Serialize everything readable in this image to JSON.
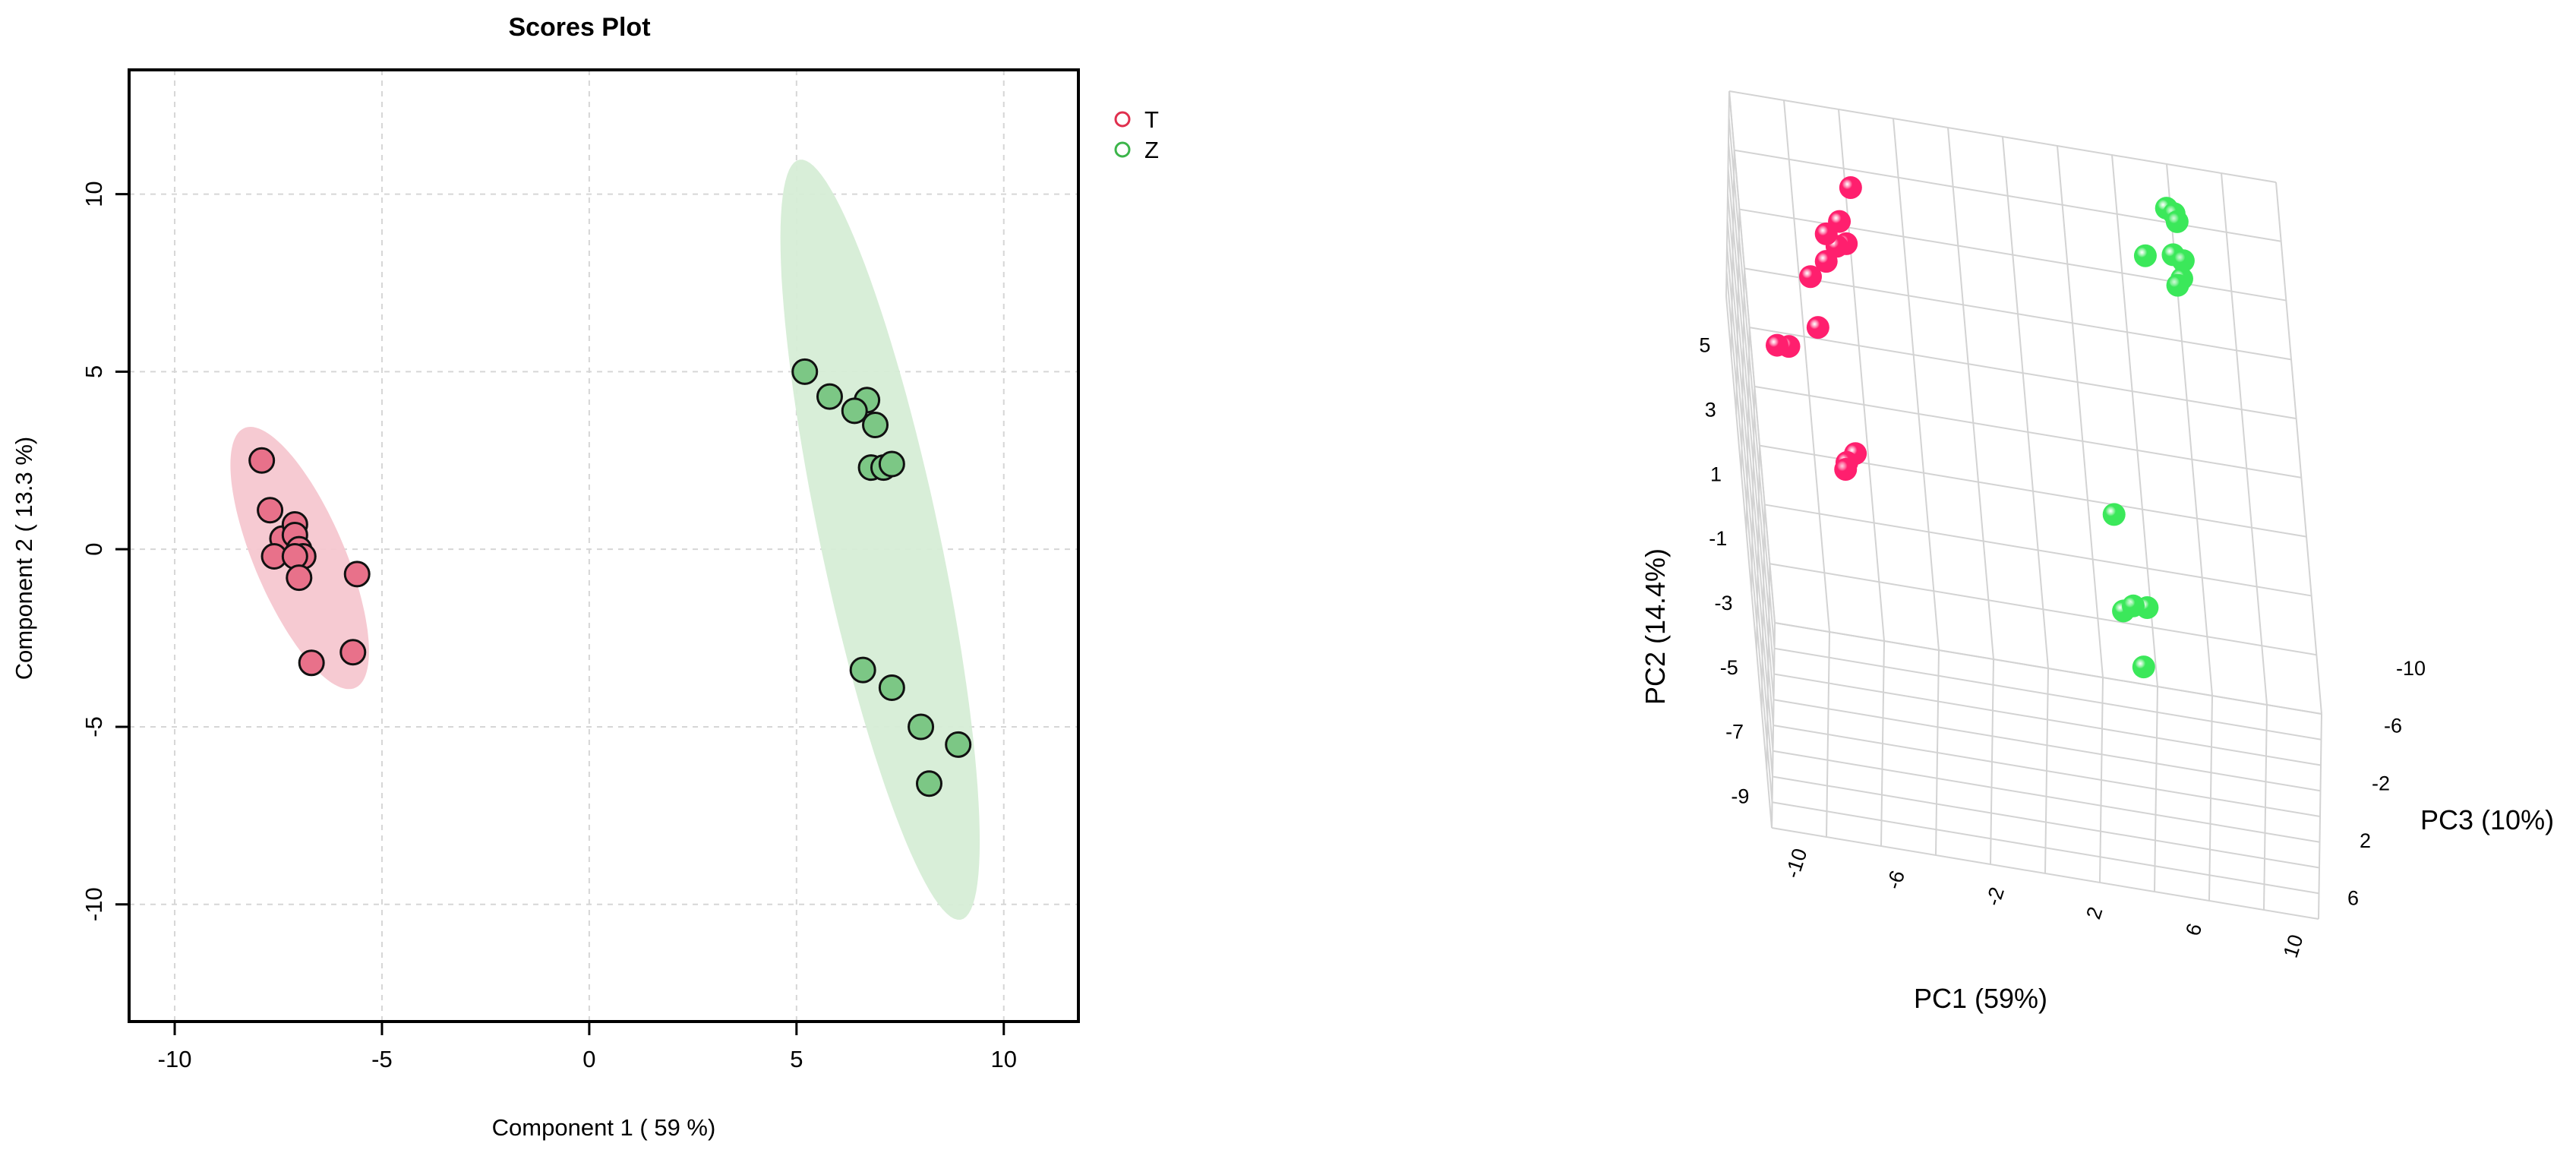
{
  "colors": {
    "T": "#e8718a",
    "Z": "#7cc785",
    "T_ellipse": "#f6c7d0",
    "Z_ellipse": "#d6edd6",
    "T_3d": "#ff1f6e",
    "Z_3d": "#3be85a"
  },
  "chart_data": [
    {
      "type": "scatter",
      "title": "Scores Plot",
      "xlabel": "Component 1 ( 59 %)",
      "ylabel": "Component 2 ( 13.3 %)",
      "xlim": [
        -11.1,
        11.8
      ],
      "ylim": [
        -13.3,
        13.5
      ],
      "xticks": [
        "-10",
        "-5",
        "0",
        "5",
        "10"
      ],
      "yticks": [
        "-10",
        "-5",
        "0",
        "5",
        "10"
      ],
      "grid": true,
      "legend_position": "right",
      "series": [
        {
          "name": "T",
          "x": [
            -7.9,
            -7.7,
            -7.4,
            -7.1,
            -7.1,
            -7.0,
            -6.9,
            -7.6,
            -7.1,
            -7.0,
            -5.6,
            -6.7,
            -5.7
          ],
          "y": [
            2.5,
            1.1,
            0.3,
            0.7,
            0.4,
            0.0,
            -0.2,
            -0.2,
            -0.2,
            -0.8,
            -0.7,
            -3.2,
            -2.9
          ]
        },
        {
          "name": "Z",
          "x": [
            5.2,
            5.8,
            6.7,
            6.4,
            6.9,
            6.8,
            7.1,
            7.3,
            6.6,
            7.3,
            8.0,
            8.9,
            8.2
          ],
          "y": [
            5.0,
            4.3,
            4.2,
            3.9,
            3.5,
            2.3,
            2.3,
            2.4,
            -3.4,
            -3.9,
            -5.0,
            -5.5,
            -6.6
          ]
        }
      ]
    },
    {
      "type": "scatter",
      "title": "",
      "xlabel": "PC1 (59%)",
      "ylabel": "PC2 (14.4%)",
      "zlabel": "PC3 (10%)",
      "pc1_ticks": [
        "-10",
        "-6",
        "-2",
        "2",
        "6",
        "10"
      ],
      "pc2_ticks": [
        "5",
        "3",
        "1",
        "-1",
        "-3",
        "-5",
        "-7",
        "-9"
      ],
      "pc3_ticks": [
        "-10",
        "-6",
        "-2",
        "2",
        "6"
      ],
      "grid": true,
      "series": [
        {
          "name": "T",
          "pc1": [
            -6.2,
            -6.8,
            -6.6,
            -7.0,
            -7.4,
            -7.5,
            -8.2,
            -8.0,
            -9.3,
            -9.8,
            -6.8,
            -7.2,
            -7.3
          ],
          "pc2": [
            5.5,
            4.2,
            3.5,
            3.3,
            3.6,
            2.7,
            2.1,
            1.1,
            0.0,
            -0.2,
            -1.8,
            -2.3,
            -2.7
          ],
          "pc3": [
            -7.0,
            -7.5,
            -7.6,
            -7.8,
            -7.9,
            -8.0,
            -8.1,
            -6.5,
            -7.5,
            -8.0,
            -4.0,
            -4.5,
            -5.0
          ]
        },
        {
          "name": "Z",
          "pc1": [
            6.5,
            6.8,
            6.9,
            6.6,
            7.0,
            6.9,
            5.5,
            6.7,
            3.8,
            4.0,
            4.9,
            4.3,
            4.6
          ],
          "pc2": [
            5.6,
            5.5,
            5.3,
            4.1,
            4.0,
            3.6,
            4.2,
            3.3,
            -0.4,
            -2.2,
            -2.6,
            -2.9,
            -4.1
          ],
          "pc3": [
            -9.6,
            -9.5,
            -9.4,
            -9.8,
            -9.7,
            -9.2,
            -9.0,
            -9.4,
            1.6,
            5.0,
            3.2,
            2.4,
            4.3
          ]
        }
      ]
    }
  ]
}
